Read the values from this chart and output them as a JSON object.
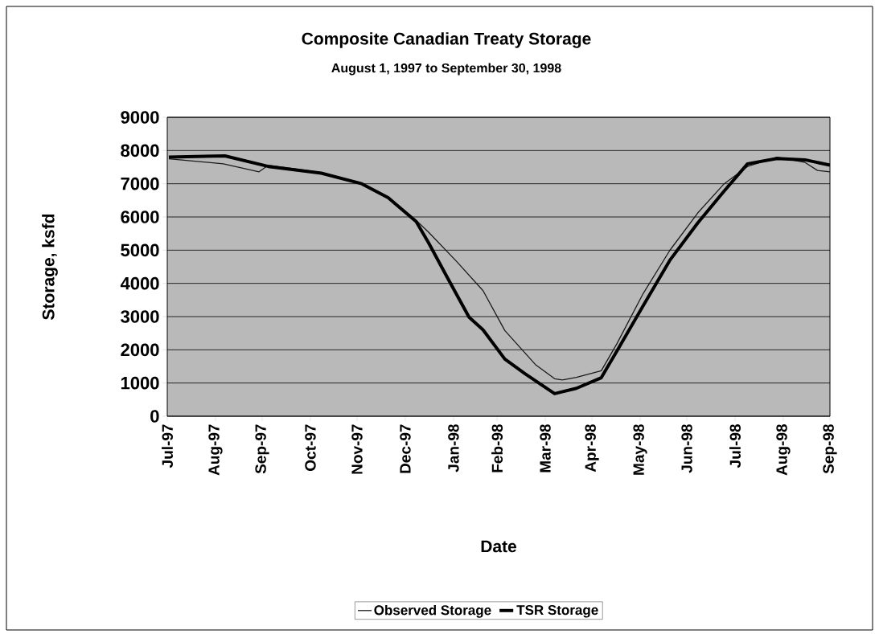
{
  "chart_data": {
    "type": "line",
    "title": "Composite Canadian Treaty Storage",
    "subtitle": "August 1, 1997 to September 30, 1998",
    "xlabel": "Date",
    "ylabel": "Storage, ksfd",
    "xlim": [
      "1997-07-31",
      "1998-09-30"
    ],
    "xticks": [
      {
        "value": "1997-07-31",
        "label": "Jul-97"
      },
      {
        "value": "1997-08-31",
        "label": "Aug-97"
      },
      {
        "value": "1997-09-30",
        "label": "Sep-97"
      },
      {
        "value": "1997-10-31",
        "label": "Oct-97"
      },
      {
        "value": "1997-11-30",
        "label": "Nov-97"
      },
      {
        "value": "1997-12-31",
        "label": "Dec-97"
      },
      {
        "value": "1998-01-31",
        "label": "Jan-98"
      },
      {
        "value": "1998-02-28",
        "label": "Feb-98"
      },
      {
        "value": "1998-03-31",
        "label": "Mar-98"
      },
      {
        "value": "1998-04-30",
        "label": "Apr-98"
      },
      {
        "value": "1998-05-31",
        "label": "May-98"
      },
      {
        "value": "1998-06-30",
        "label": "Jun-98"
      },
      {
        "value": "1998-07-31",
        "label": "Jul-98"
      },
      {
        "value": "1998-08-31",
        "label": "Aug-98"
      },
      {
        "value": "1998-09-30",
        "label": "Sep-98"
      }
    ],
    "ylim": [
      0,
      9000
    ],
    "yticks": [
      0,
      1000,
      2000,
      3000,
      4000,
      5000,
      6000,
      7000,
      8000,
      9000
    ],
    "grid": "y",
    "legend": "bottom",
    "marker": "none",
    "line_style": "solid",
    "series": [
      {
        "name": "Observed Storage",
        "color": "#1a1a1a",
        "x": [
          "1997-08-01",
          "1997-09-05",
          "1997-09-28",
          "1997-10-04",
          "1997-11-07",
          "1997-12-03",
          "1997-12-20",
          "1998-01-07",
          "1998-01-15",
          "1998-02-02",
          "1998-02-19",
          "1998-03-05",
          "1998-03-25",
          "1998-04-06",
          "1998-04-11",
          "1998-04-20",
          "1998-05-06",
          "1998-05-16",
          "1998-06-02",
          "1998-06-19",
          "1998-07-07",
          "1998-07-24",
          "1998-08-08",
          "1998-08-27",
          "1998-09-14",
          "1998-09-22",
          "1998-09-30"
        ],
        "values": [
          7750,
          7600,
          7360,
          7560,
          7340,
          7020,
          6600,
          5900,
          5540,
          4660,
          3780,
          2580,
          1540,
          1130,
          1090,
          1170,
          1370,
          2180,
          3700,
          4990,
          6120,
          7000,
          7520,
          7800,
          7640,
          7400,
          7360
        ]
      },
      {
        "name": "TSR Storage",
        "color": "#000000",
        "x": [
          "1997-08-01",
          "1997-09-06",
          "1997-10-04",
          "1997-11-07",
          "1997-12-03",
          "1997-12-20",
          "1998-01-07",
          "1998-01-15",
          "1998-01-27",
          "1998-02-10",
          "1998-02-19",
          "1998-03-05",
          "1998-03-18",
          "1998-04-06",
          "1998-04-20",
          "1998-05-06",
          "1998-05-16",
          "1998-06-02",
          "1998-06-19",
          "1998-07-07",
          "1998-07-24",
          "1998-08-08",
          "1998-08-27",
          "1998-09-14",
          "1998-09-30"
        ],
        "values": [
          7800,
          7840,
          7520,
          7320,
          7000,
          6580,
          5860,
          5220,
          4180,
          2980,
          2600,
          1720,
          1280,
          680,
          840,
          1160,
          1960,
          3330,
          4690,
          5820,
          6780,
          7600,
          7760,
          7720,
          7560
        ]
      }
    ]
  }
}
